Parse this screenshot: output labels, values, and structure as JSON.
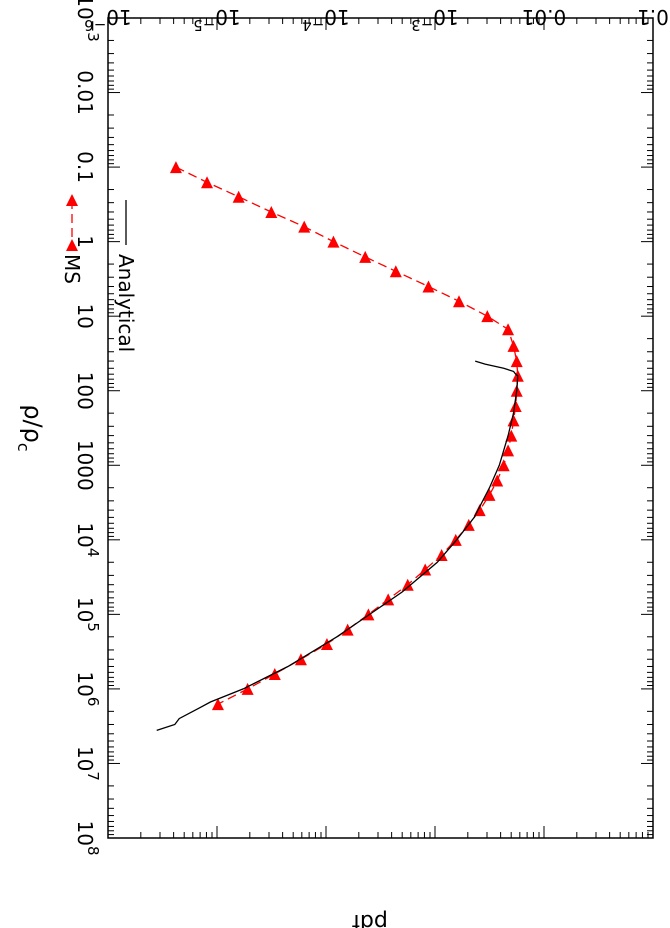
{
  "chart_data": {
    "type": "line",
    "orientation": "rotated 90 degrees clockwise",
    "x": {
      "label_main": "ρ/ρ",
      "label_sub": "c",
      "scale": "log",
      "range": [
        0.001,
        100000000
      ],
      "ticks": [
        {
          "value": 0.001,
          "base": "10",
          "exp": "−3"
        },
        {
          "value": 0.01,
          "text": "0.01"
        },
        {
          "value": 0.1,
          "text": "0.1"
        },
        {
          "value": 1,
          "text": "1"
        },
        {
          "value": 10,
          "text": "10"
        },
        {
          "value": 100,
          "text": "100"
        },
        {
          "value": 1000,
          "text": "1000"
        },
        {
          "value": 10000,
          "base": "10",
          "exp": "4"
        },
        {
          "value": 100000,
          "base": "10",
          "exp": "5"
        },
        {
          "value": 1000000,
          "base": "10",
          "exp": "6"
        },
        {
          "value": 10000000,
          "base": "10",
          "exp": "7"
        },
        {
          "value": 100000000,
          "base": "10",
          "exp": "8"
        }
      ]
    },
    "y": {
      "label": "pdf",
      "scale": "log",
      "range": [
        1e-06,
        0.1
      ],
      "ticks": [
        {
          "value": 0.1,
          "text": "0.1"
        },
        {
          "value": 0.01,
          "text": "0.01"
        },
        {
          "value": 0.001,
          "base": "10",
          "exp": "−3"
        },
        {
          "value": 0.0001,
          "base": "10",
          "exp": "−4"
        },
        {
          "value": 1e-05,
          "base": "10",
          "exp": "−5"
        },
        {
          "value": 1e-06,
          "base": "10",
          "exp": "−6"
        }
      ]
    },
    "series": [
      {
        "name": "MS",
        "color": "#ff0000",
        "style": "dashed",
        "marker": "triangle",
        "points": [
          [
            0.1,
            4.2e-06
          ],
          [
            0.16,
            8.1e-06
          ],
          [
            0.25,
            1.58e-05
          ],
          [
            0.4,
            3.15e-05
          ],
          [
            0.63,
            6.31e-05
          ],
          [
            1.0,
            0.000117
          ],
          [
            1.6,
            0.000229
          ],
          [
            2.5,
            0.000437
          ],
          [
            4.0,
            0.000871
          ],
          [
            6.3,
            0.00166
          ],
          [
            10,
            0.00302
          ],
          [
            15,
            0.00468
          ],
          [
            25,
            0.00525
          ],
          [
            40,
            0.00562
          ],
          [
            63,
            0.00575
          ],
          [
            100,
            0.00562
          ],
          [
            160,
            0.0055
          ],
          [
            250,
            0.00525
          ],
          [
            400,
            0.00501
          ],
          [
            630,
            0.00468
          ],
          [
            1000,
            0.00427
          ],
          [
            1600,
            0.00372
          ],
          [
            2500,
            0.00316
          ],
          [
            4000,
            0.00257
          ],
          [
            6300,
            0.00204
          ],
          [
            10000,
            0.00155
          ],
          [
            16000,
            0.00115
          ],
          [
            25000,
            0.000813
          ],
          [
            40000,
            0.000562
          ],
          [
            63000,
            0.000372
          ],
          [
            100000,
            0.000245
          ],
          [
            160000,
            0.000158
          ],
          [
            250000,
            0.000102
          ],
          [
            400000,
            5.89e-05
          ],
          [
            630000,
            3.39e-05
          ],
          [
            1000000,
            1.91e-05
          ],
          [
            1600000,
            1.02e-05
          ]
        ]
      },
      {
        "name": "Analytical",
        "color": "#000000",
        "style": "solid",
        "marker": "none",
        "points": [
          [
            40,
            0.00234
          ],
          [
            44,
            0.00288
          ],
          [
            50,
            0.00427
          ],
          [
            55,
            0.00525
          ],
          [
            60,
            0.0055
          ],
          [
            63,
            0.00575
          ],
          [
            100,
            0.00562
          ],
          [
            200,
            0.00525
          ],
          [
            400,
            0.00468
          ],
          [
            1000,
            0.00389
          ],
          [
            2000,
            0.00316
          ],
          [
            5000,
            0.00229
          ],
          [
            10000,
            0.00158
          ],
          [
            20000,
            0.00105
          ],
          [
            50000,
            0.000501
          ],
          [
            100000,
            0.000251
          ],
          [
            200000,
            0.000126
          ],
          [
            500000,
            4.47e-05
          ],
          [
            1000000,
            1.74e-05
          ],
          [
            1500000,
            8.7e-06
          ],
          [
            1800000,
            6.9e-06
          ],
          [
            2500000,
            4.5e-06
          ],
          [
            3000000,
            4.1e-06
          ],
          [
            3600000,
            2.8e-06
          ]
        ]
      }
    ],
    "legend": {
      "placement": "top-left"
    },
    "grid": false
  }
}
